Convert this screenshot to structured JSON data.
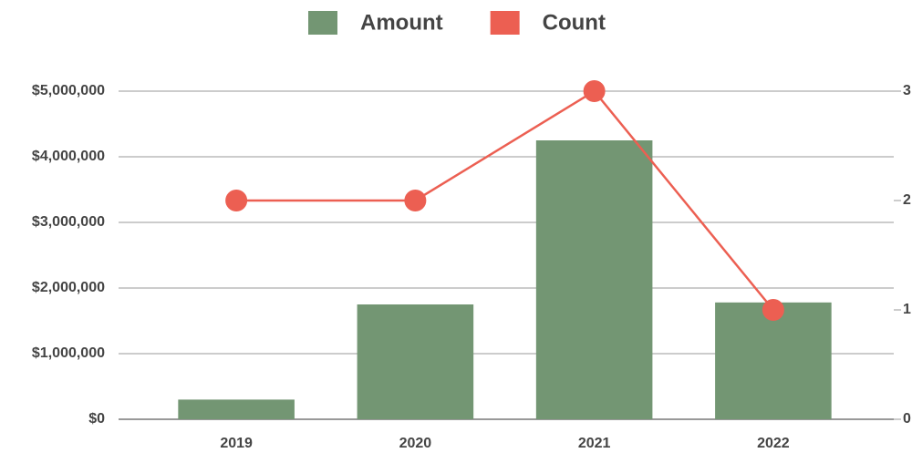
{
  "chart_data": {
    "type": "bar_line",
    "categories": [
      "2019",
      "2020",
      "2021",
      "2022"
    ],
    "series": [
      {
        "name": "Amount",
        "color": "#739673",
        "type": "bar",
        "values": [
          300000,
          1750000,
          4250000,
          1780000
        ]
      },
      {
        "name": "Count",
        "color": "#ec5f52",
        "type": "line",
        "axis": "y2",
        "values": [
          2,
          2,
          3,
          1
        ]
      }
    ],
    "ylim": [
      0,
      5000000
    ],
    "yticks": [
      {
        "value": 0,
        "label": "$0"
      },
      {
        "value": 1000000,
        "label": "$1,000,000"
      },
      {
        "value": 2000000,
        "label": "$2,000,000"
      },
      {
        "value": 3000000,
        "label": "$3,000,000"
      },
      {
        "value": 4000000,
        "label": "$4,000,000"
      },
      {
        "value": 5000000,
        "label": "$5,000,000"
      }
    ],
    "y2lim": [
      0,
      3
    ],
    "y2ticks": [
      0,
      1,
      2,
      3
    ],
    "grid": true
  }
}
